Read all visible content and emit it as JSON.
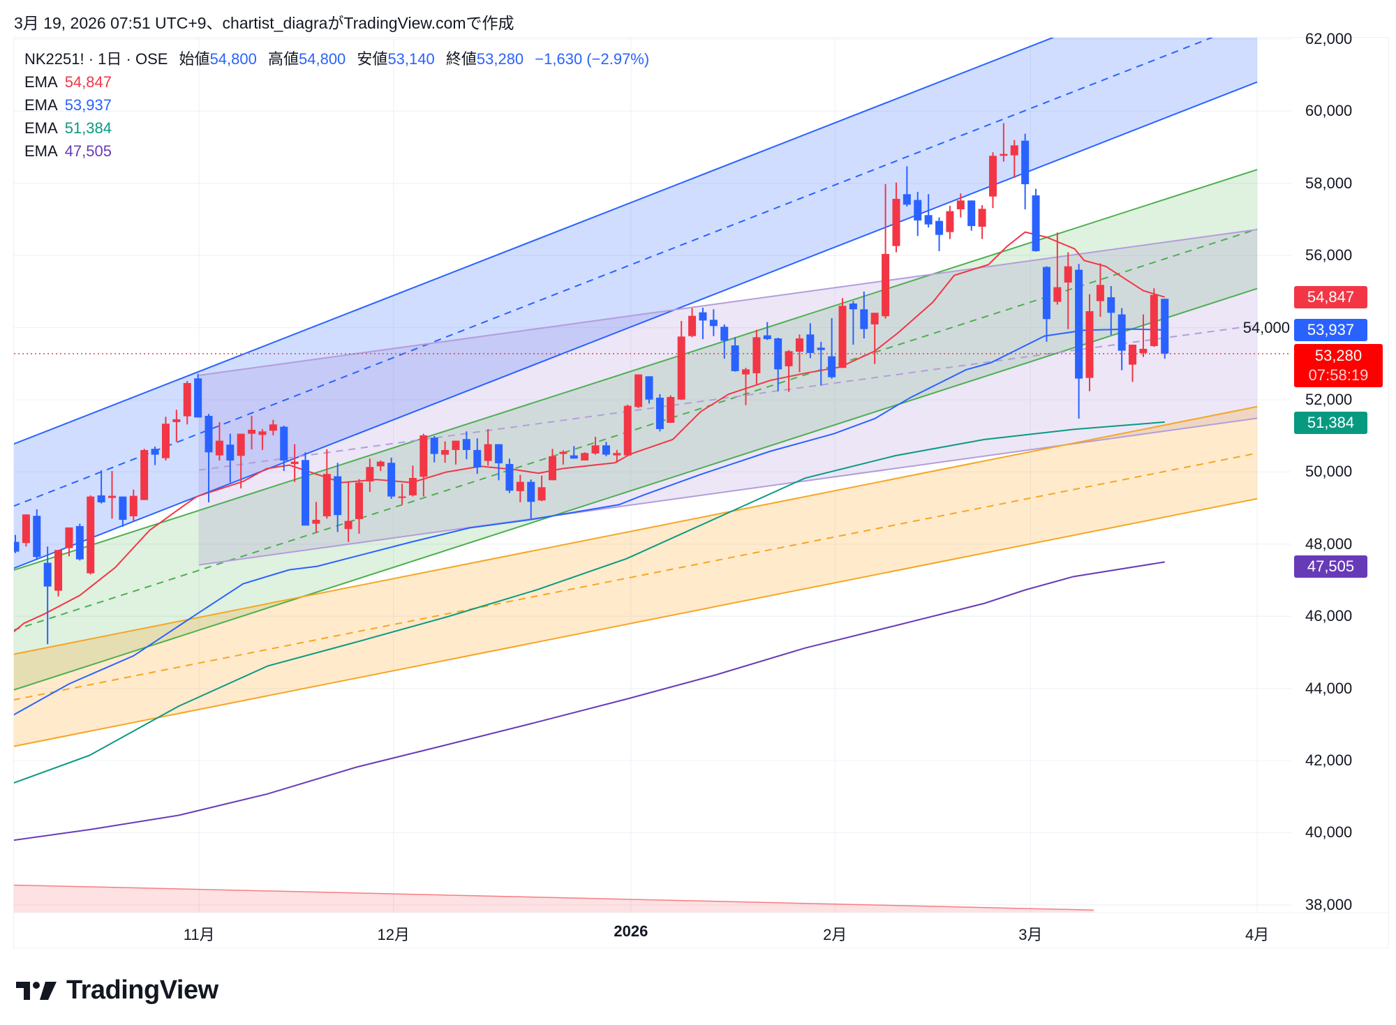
{
  "caption": "3月 19, 2026 07:51 UTC+9、chartist_diagraがTradingView.comで作成",
  "legend": {
    "symbol": "NK2251! · 1日 · OSE",
    "open_label": "始値",
    "open": "54,800",
    "high_label": "高値",
    "high": "54,800",
    "low_label": "安値",
    "low": "53,140",
    "close_label": "終値",
    "close": "53,280",
    "change": "−1,630 (−2.97%)",
    "emas": [
      {
        "label": "EMA",
        "value": "54,847",
        "color": "#f23645"
      },
      {
        "label": "EMA",
        "value": "53,937",
        "color": "#2962ff"
      },
      {
        "label": "EMA",
        "value": "51,384",
        "color": "#089981"
      },
      {
        "label": "EMA",
        "value": "47,505",
        "color": "#673ab7"
      }
    ]
  },
  "price_badges": {
    "ema1": "54,847",
    "ema2": "53,937",
    "ema3": "51,384",
    "ema4": "47,505",
    "last_price": "53,280",
    "countdown": "07:58:19"
  },
  "logo": {
    "text": "TradingView"
  },
  "chart_data": {
    "type": "candlestick",
    "title": "",
    "ylim": [
      37800,
      62000
    ],
    "grid": true,
    "up_color": "#f23645",
    "down_color": "#2962ff",
    "y_ticks": [
      {
        "value": 62000,
        "label": "62,000"
      },
      {
        "value": 60000,
        "label": "60,000"
      },
      {
        "value": 58000,
        "label": "58,000"
      },
      {
        "value": 56000,
        "label": "56,000"
      },
      {
        "value": 54000,
        "label": "54,000"
      },
      {
        "value": 52000,
        "label": "52,000"
      },
      {
        "value": 50000,
        "label": "50,000"
      },
      {
        "value": 48000,
        "label": "48,000"
      },
      {
        "value": 46000,
        "label": "46,000"
      },
      {
        "value": 44000,
        "label": "44,000"
      },
      {
        "value": 42000,
        "label": "42,000"
      },
      {
        "value": 40000,
        "label": "40,000"
      },
      {
        "value": 38000,
        "label": "38,000"
      }
    ],
    "x_ticks": [
      {
        "bar": 17.1,
        "label": "11月",
        "bold": false
      },
      {
        "bar": 35.2,
        "label": "12月",
        "bold": false
      },
      {
        "bar": 57.3,
        "label": "2026",
        "bold": true
      },
      {
        "bar": 76.3,
        "label": "2月",
        "bold": false
      },
      {
        "bar": 94.5,
        "label": "3月",
        "bold": false
      },
      {
        "bar": 115.6,
        "label": "4月",
        "bold": false
      }
    ],
    "candles_ohlc": [
      [
        48062,
        48255,
        47750,
        47791
      ],
      [
        48030,
        48822,
        47933,
        48822
      ],
      [
        48784,
        48964,
        47559,
        47643
      ],
      [
        47482,
        47933,
        45225,
        46824
      ],
      [
        46708,
        47836,
        46547,
        47836
      ],
      [
        47888,
        48462,
        47662,
        48462
      ],
      [
        48500,
        48565,
        47546,
        47578
      ],
      [
        47192,
        49351,
        47159,
        49319
      ],
      [
        49351,
        50047,
        49126,
        49158
      ],
      [
        49280,
        50028,
        48706,
        49338
      ],
      [
        49319,
        49319,
        48481,
        48674
      ],
      [
        48771,
        49512,
        48629,
        49338
      ],
      [
        49222,
        50641,
        49222,
        50608
      ],
      [
        50641,
        50705,
        50190,
        50479
      ],
      [
        50383,
        51530,
        50318,
        51337
      ],
      [
        51382,
        51724,
        50834,
        51460
      ],
      [
        51543,
        52523,
        51318,
        52465
      ],
      [
        52594,
        52717,
        51511,
        51511
      ],
      [
        51556,
        51608,
        49158,
        50544
      ],
      [
        50460,
        51382,
        50318,
        50866
      ],
      [
        50757,
        51060,
        49706,
        50318
      ],
      [
        50447,
        51060,
        49545,
        51060
      ],
      [
        51060,
        51556,
        50628,
        51169
      ],
      [
        51027,
        51189,
        50608,
        51124
      ],
      [
        51144,
        51446,
        51014,
        51318
      ],
      [
        51253,
        51285,
        50028,
        50318
      ],
      [
        50221,
        50769,
        49725,
        50286
      ],
      [
        50331,
        50544,
        48513,
        48513
      ],
      [
        48565,
        49171,
        48320,
        48674
      ],
      [
        48771,
        50628,
        48707,
        49945
      ],
      [
        49880,
        50254,
        48333,
        48804
      ],
      [
        48417,
        49738,
        48062,
        48643
      ],
      [
        48694,
        49803,
        48288,
        49706
      ],
      [
        49738,
        50370,
        49448,
        50138
      ],
      [
        50157,
        50318,
        50028,
        50286
      ],
      [
        50254,
        50396,
        49255,
        49319
      ],
      [
        49280,
        49674,
        49094,
        49320
      ],
      [
        49352,
        50177,
        49320,
        49835
      ],
      [
        49867,
        51060,
        49320,
        51015
      ],
      [
        50950,
        50996,
        50267,
        50499
      ],
      [
        50480,
        50847,
        50254,
        50609
      ],
      [
        50609,
        50867,
        50203,
        50867
      ],
      [
        50912,
        51125,
        50351,
        50609
      ],
      [
        50609,
        50931,
        49945,
        50125
      ],
      [
        50306,
        51189,
        50177,
        50770
      ],
      [
        50770,
        50770,
        49770,
        50241
      ],
      [
        50222,
        50370,
        49416,
        49481
      ],
      [
        49468,
        49919,
        49158,
        49726
      ],
      [
        49726,
        49790,
        48707,
        49171
      ],
      [
        49210,
        49900,
        49190,
        49577
      ],
      [
        49771,
        50641,
        49771,
        50435
      ],
      [
        50499,
        50602,
        50203,
        50557
      ],
      [
        50460,
        50718,
        50370,
        50370
      ],
      [
        50319,
        50545,
        50319,
        50525
      ],
      [
        50512,
        50976,
        50480,
        50738
      ],
      [
        50738,
        50834,
        50435,
        50480
      ],
      [
        50460,
        50609,
        50254,
        50525
      ],
      [
        50460,
        51866,
        50460,
        51834
      ],
      [
        51801,
        52704,
        51769,
        52704
      ],
      [
        52652,
        52652,
        51898,
        52007
      ],
      [
        52059,
        52156,
        51124,
        51189
      ],
      [
        51363,
        52123,
        51363,
        52078
      ],
      [
        52007,
        54186,
        51994,
        53754
      ],
      [
        53767,
        54541,
        53735,
        54328
      ],
      [
        54425,
        54554,
        53683,
        54199
      ],
      [
        54218,
        54509,
        53767,
        54045
      ],
      [
        54025,
        54090,
        53142,
        53639
      ],
      [
        53509,
        53735,
        52781,
        52794
      ],
      [
        52704,
        52884,
        51853,
        52845
      ],
      [
        52736,
        53941,
        52433,
        53735
      ],
      [
        53787,
        54154,
        53658,
        53683
      ],
      [
        53703,
        53722,
        52240,
        52845
      ],
      [
        52929,
        53380,
        52220,
        53348
      ],
      [
        53335,
        53812,
        52768,
        53703
      ],
      [
        53812,
        54122,
        53155,
        53297
      ],
      [
        53445,
        53606,
        52394,
        53380
      ],
      [
        53206,
        54263,
        52588,
        52626
      ],
      [
        52884,
        54818,
        52884,
        54605
      ],
      [
        54670,
        54734,
        53529,
        54509
      ],
      [
        54509,
        55000,
        53703,
        53961
      ],
      [
        54090,
        54412,
        52994,
        54412
      ],
      [
        54316,
        57978,
        54251,
        56044
      ],
      [
        56263,
        58023,
        56089,
        57571
      ],
      [
        57700,
        58474,
        57359,
        57410
      ],
      [
        57539,
        57765,
        56540,
        56972
      ],
      [
        57120,
        57700,
        56778,
        56862
      ],
      [
        56959,
        57056,
        56121,
        56572
      ],
      [
        56650,
        57378,
        56456,
        57230
      ],
      [
        57281,
        57720,
        57056,
        57526
      ],
      [
        57526,
        57526,
        56688,
        56817
      ],
      [
        56798,
        57397,
        56456,
        57294
      ],
      [
        57636,
        58861,
        57314,
        58764
      ],
      [
        58764,
        59667,
        58603,
        58816
      ],
      [
        58777,
        59202,
        58151,
        59054
      ],
      [
        59183,
        59377,
        57281,
        57977
      ],
      [
        57668,
        57849,
        56108,
        56121
      ],
      [
        55682,
        55701,
        53607,
        54238
      ],
      [
        54716,
        56637,
        54638,
        55122
      ],
      [
        55250,
        56089,
        53962,
        55701
      ],
      [
        55605,
        55766,
        51479,
        52588
      ],
      [
        52607,
        54928,
        52240,
        54457
      ],
      [
        54735,
        55785,
        54302,
        55185
      ],
      [
        54844,
        55154,
        53800,
        54412
      ],
      [
        54367,
        54541,
        52820,
        53362
      ],
      [
        52975,
        53529,
        52498,
        53529
      ],
      [
        53297,
        54367,
        53187,
        53413
      ],
      [
        53490,
        55089,
        53464,
        54909
      ],
      [
        54800,
        54800,
        53140,
        53280
      ]
    ],
    "ema_series": [
      {
        "label": "EMA",
        "last": 54847,
        "color": "#f23645",
        "points": [
          [
            -0.5,
            45483
          ],
          [
            0.8,
            45805
          ],
          [
            2.7,
            46063
          ],
          [
            6,
            46579
          ],
          [
            9.3,
            47353
          ],
          [
            12.5,
            48384
          ],
          [
            15.8,
            49093
          ],
          [
            16.9,
            49319
          ],
          [
            21.2,
            49738
          ],
          [
            23.4,
            50093
          ],
          [
            25.5,
            50190
          ],
          [
            28.1,
            49932
          ],
          [
            30.4,
            49706
          ],
          [
            33.6,
            49790
          ],
          [
            36.9,
            49706
          ],
          [
            40.1,
            49996
          ],
          [
            43.3,
            50157
          ],
          [
            46.6,
            50061
          ],
          [
            48.7,
            49964
          ],
          [
            50.9,
            50093
          ],
          [
            55.8,
            50254
          ],
          [
            57.3,
            50500
          ],
          [
            61.2,
            50900
          ],
          [
            63.8,
            51672
          ],
          [
            66.4,
            52156
          ],
          [
            70.3,
            52540
          ],
          [
            73.5,
            52736
          ],
          [
            76.8,
            52910
          ],
          [
            80,
            53350
          ],
          [
            82.2,
            53864
          ],
          [
            85.4,
            54702
          ],
          [
            87.4,
            55450
          ],
          [
            90.6,
            55750
          ],
          [
            92.3,
            56250
          ],
          [
            94,
            56650
          ],
          [
            96,
            56508
          ],
          [
            98.6,
            56185
          ],
          [
            99.5,
            55862
          ],
          [
            101.5,
            55700
          ],
          [
            105,
            55025
          ],
          [
            107,
            54847
          ]
        ]
      },
      {
        "label": "EMA",
        "last": 53937,
        "color": "#2962ff",
        "points": [
          [
            -0.2,
            43260
          ],
          [
            5,
            44126
          ],
          [
            11,
            44903
          ],
          [
            16.9,
            46063
          ],
          [
            21.2,
            46901
          ],
          [
            25.5,
            47288
          ],
          [
            28.1,
            47385
          ],
          [
            36.9,
            48062
          ],
          [
            42.3,
            48450
          ],
          [
            47.9,
            48675
          ],
          [
            56.2,
            49094
          ],
          [
            58.4,
            49352
          ],
          [
            63.8,
            49932
          ],
          [
            70.3,
            50576
          ],
          [
            76.2,
            51060
          ],
          [
            80,
            51479
          ],
          [
            83.3,
            52059
          ],
          [
            88.5,
            52833
          ],
          [
            90.8,
            53026
          ],
          [
            95.8,
            53768
          ],
          [
            99.5,
            53929
          ],
          [
            103.8,
            53961
          ],
          [
            107,
            53937
          ]
        ]
      },
      {
        "label": "EMA",
        "last": 51384,
        "color": "#089981",
        "points": [
          [
            -0.2,
            41375
          ],
          [
            6.9,
            42143
          ],
          [
            15.2,
            43507
          ],
          [
            23.5,
            44622
          ],
          [
            31.8,
            45290
          ],
          [
            40.2,
            45985
          ],
          [
            48.5,
            46729
          ],
          [
            56.9,
            47597
          ],
          [
            65.2,
            48712
          ],
          [
            73.5,
            49828
          ],
          [
            81.9,
            50450
          ],
          [
            90.2,
            50900
          ],
          [
            98.5,
            51180
          ],
          [
            107,
            51384
          ]
        ]
      },
      {
        "label": "EMA",
        "last": 47505,
        "color": "#673ab7",
        "points": [
          [
            -0.2,
            39790
          ],
          [
            6.9,
            40086
          ],
          [
            15.2,
            40482
          ],
          [
            23.5,
            41077
          ],
          [
            31.8,
            41821
          ],
          [
            40.2,
            42440
          ],
          [
            48.5,
            43060
          ],
          [
            56.9,
            43705
          ],
          [
            65.2,
            44374
          ],
          [
            73.5,
            45118
          ],
          [
            81.9,
            45738
          ],
          [
            90.2,
            46357
          ],
          [
            94,
            46729
          ],
          [
            98.5,
            47100
          ],
          [
            107,
            47505
          ]
        ]
      }
    ],
    "channels": [
      {
        "color": "#2962ff",
        "fill": "rgba(41,98,255,0.22)",
        "bars": [
          -0.2,
          115.6
        ],
        "upper": [
          50770,
          64256
        ],
        "mid": [
          49048,
          62533
        ],
        "lower": [
          47325,
          60810
        ]
      },
      {
        "color": "#4caf50",
        "fill": "rgba(76,175,80,0.18)",
        "bars": [
          -0.2,
          115.6
        ],
        "upper": [
          47275,
          58381
        ],
        "mid": [
          45614,
          56733
        ],
        "lower": [
          43953,
          55084
        ]
      },
      {
        "color": "#b39ddb",
        "fill": "rgba(149,117,205,0.18)",
        "bars": [
          17.1,
          115.6
        ],
        "upper": [
          52679,
          56720
        ],
        "mid": [
          50051,
          54067
        ],
        "lower": [
          47424,
          51488
        ]
      },
      {
        "color": "#f5a623",
        "fill": "rgba(255,152,0,0.2)",
        "bars": [
          -0.2,
          115.6
        ],
        "upper": [
          44944,
          51811
        ],
        "mid": [
          43680,
          50522
        ],
        "lower": [
          42391,
          49258
        ]
      }
    ],
    "red_zone": {
      "color": "#f77c80",
      "fill": "rgba(242,54,69,0.15)",
      "bars": [
        -0.2,
        100.4
      ],
      "line": [
        38549,
        37855
      ]
    },
    "last_price_line": {
      "value": 53280,
      "color": "#f23645"
    }
  }
}
